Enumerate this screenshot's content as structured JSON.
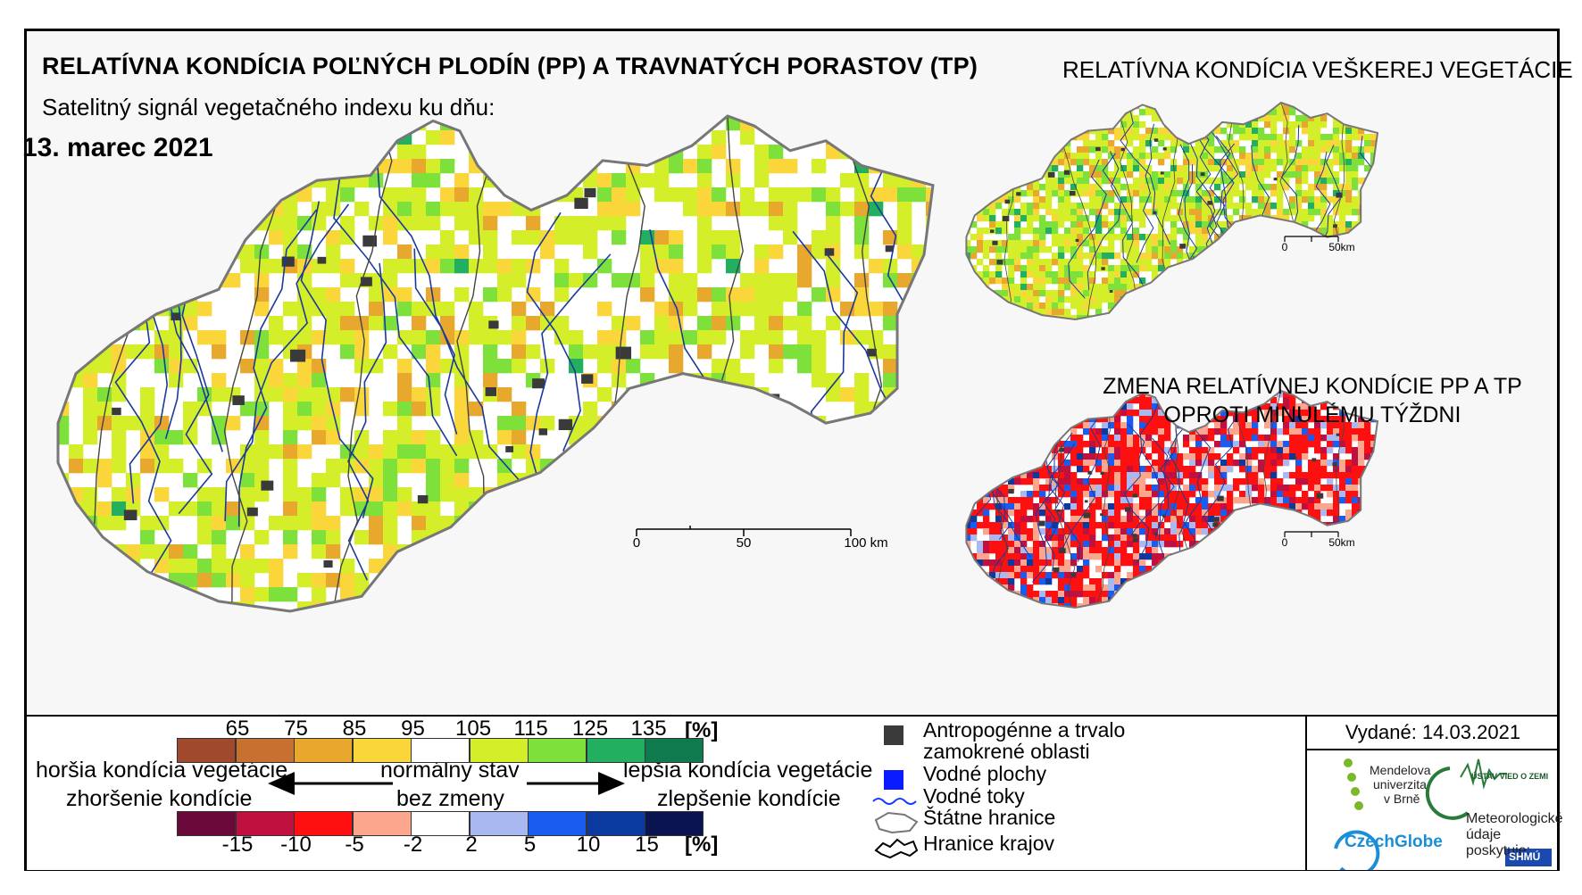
{
  "titles": {
    "main": "RELATÍVNA KONDÍCIA POĽNÝCH PLODÍN (PP) A TRAVNATÝCH PORASTOV (TP)",
    "subtitle": "Satelitný signál vegetačného indexu ku dňu:",
    "date": "13. marec 2021",
    "all_vegetation": "RELATÍVNA KONDÍCIA VEŠKEREJ VEGETÁCIE",
    "change_line1": "ZMENA RELATÍVNEJ KONDÍCIE PP A TP",
    "change_line2": "OPROTI MINULÉMU TÝŽDNI"
  },
  "scales": {
    "main_scale": {
      "labels": [
        "0",
        "50",
        "100 km"
      ]
    },
    "small_scale_top": {
      "labels": [
        "0",
        "50km"
      ]
    },
    "small_scale_bottom": {
      "labels": [
        "0",
        "50km"
      ]
    }
  },
  "legend": {
    "condition_ticks": [
      "65",
      "75",
      "85",
      "95",
      "105",
      "115",
      "125",
      "135"
    ],
    "condition_unit": "[%]",
    "condition_colors": [
      "#a0492d",
      "#c8702f",
      "#e8a82e",
      "#fbd63a",
      "#ffffff",
      "#d4ef2a",
      "#7ee03a",
      "#22b060",
      "#0f7a4e"
    ],
    "change_ticks": [
      "-15",
      "-10",
      "-5",
      "-2",
      "2",
      "5",
      "10",
      "15"
    ],
    "change_unit": "[%]",
    "change_colors": [
      "#6b0a3a",
      "#c0103f",
      "#ff1010",
      "#fca68e",
      "#ffffff",
      "#a9b8f0",
      "#1a5cf0",
      "#0a3aa0",
      "#0a1450"
    ],
    "worse_condition": "horšia kondícia vegetácie",
    "worsening": "zhoršenie kondície",
    "normal_state": "normálny stav",
    "no_change": "bez zmeny",
    "better_condition": "lepšia kondícia vegetácie",
    "improvement": "zlepšenie kondície",
    "anthropogenic_line1": "Antropogénne a trvalo",
    "anthropogenic_line2": "zamokrené oblasti",
    "water_bodies": "Vodné plochy",
    "water_streams": "Vodné toky",
    "state_borders": "Štátne hranice",
    "region_borders": "Hranice krajov",
    "issued": "Vydané: 14.03.2021",
    "mendel_line1": "Mendelova",
    "mendel_line2": "univerzita",
    "mendel_line3": "v Brně",
    "ustav": "ÚSTAV VIED O ZEMI",
    "czechglobe": "CzechGlobe",
    "meteo_line1": "Meteorologické",
    "meteo_line2": "údaje",
    "meteo_line3": "poskytuje:",
    "shmu": "SHMÚ"
  },
  "colors": {
    "anthropogenic": "#3a3a3a",
    "water": "#0a1cff",
    "river": "#1a3a9a"
  }
}
